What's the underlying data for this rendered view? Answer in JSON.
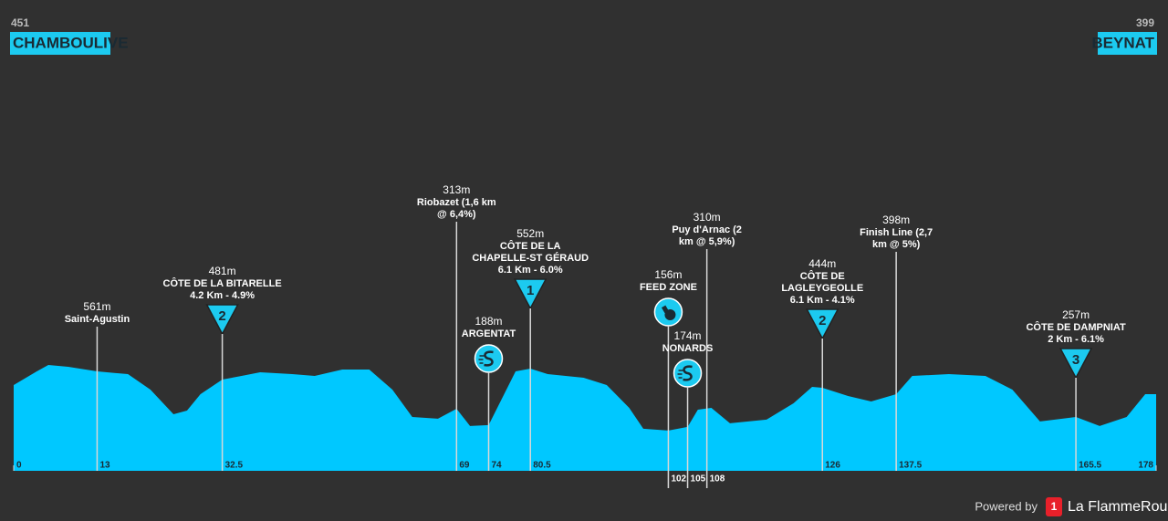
{
  "chart_data": {
    "type": "area",
    "start": {
      "number": "451",
      "name": "CHAMBOULIVE"
    },
    "finish": {
      "number": "399",
      "name": "BEYNAT"
    },
    "color": "#00c8ff",
    "xlim": [
      0,
      178
    ],
    "ylim": [
      -100,
      1000
    ],
    "profile": {
      "km": [
        0,
        3.6,
        5.4,
        8.5,
        13,
        17.8,
        21.3,
        24.9,
        27,
        29.1,
        32.5,
        35.5,
        38.4,
        43.4,
        46.9,
        51.2,
        55.4,
        59,
        62.1,
        66.1,
        69,
        71.1,
        74,
        78.2,
        80.5,
        83.2,
        88.8,
        92.4,
        95.9,
        98.1,
        102,
        105,
        106.6,
        108.7,
        111.6,
        117.3,
        121.5,
        124.4,
        126,
        130,
        133.6,
        137.5,
        140,
        145.7,
        151.4,
        155.6,
        159.9,
        165.5,
        169.2,
        173.4,
        176.3,
        178
      ],
      "elevation": [
        465,
        555,
        597,
        585,
        555,
        537,
        435,
        273,
        297,
        405,
        501,
        525,
        549,
        537,
        525,
        567,
        567,
        435,
        255,
        243,
        309,
        195,
        201,
        555,
        573,
        537,
        513,
        465,
        315,
        177,
        165,
        189,
        303,
        315,
        213,
        237,
        345,
        453,
        447,
        393,
        357,
        405,
        525,
        537,
        525,
        435,
        225,
        255,
        195,
        255,
        405,
        405
      ]
    },
    "xticks": [
      0,
      13,
      32.5,
      69,
      74,
      80.5,
      102,
      105,
      108,
      126,
      137.5,
      165.5,
      178
    ],
    "markers": [
      {
        "km": 13,
        "elevation": "561m",
        "lines": [
          "Saint-Agustin"
        ]
      },
      {
        "km": 32.5,
        "elevation": "481m",
        "lines": [
          "CÔTE DE LA BITARELLE",
          "4.2 Km - 4.9%"
        ],
        "category": "2"
      },
      {
        "km": 69,
        "elevation": "313m",
        "lines": [
          "Riobazet (1,6 km",
          "@ 6,4%)"
        ]
      },
      {
        "km": 74,
        "elevation": "188m",
        "lines": [
          "ARGENTAT"
        ],
        "icon": "sprint"
      },
      {
        "km": 80.5,
        "elevation": "552m",
        "lines": [
          "CÔTE DE LA",
          "CHAPELLE-ST GÉRAUD",
          "6.1 Km - 6.0%"
        ],
        "category": "1"
      },
      {
        "km": 102,
        "elevation": "156m",
        "lines": [
          "FEED ZONE"
        ],
        "icon": "feed"
      },
      {
        "km": 105,
        "elevation": "174m",
        "lines": [
          "NONARDS"
        ],
        "icon": "sprint"
      },
      {
        "km": 108,
        "elevation": "310m",
        "lines": [
          "Puy d'Arnac (2",
          "km @ 5,9%)"
        ]
      },
      {
        "km": 126,
        "elevation": "444m",
        "lines": [
          "CÔTE DE",
          "LAGLEYGEOLLE",
          "6.1 Km - 4.1%"
        ],
        "category": "2"
      },
      {
        "km": 137.5,
        "elevation": "398m",
        "lines": [
          "Finish Line (2,7",
          "km @ 5%)"
        ]
      },
      {
        "km": 165.5,
        "elevation": "257m",
        "lines": [
          "CÔTE DE DAMPNIAT",
          "2 Km - 6.1%"
        ],
        "category": "3"
      }
    ],
    "footer": {
      "powered": "Powered by",
      "logo": "1",
      "brand": "La FlammeRouge"
    }
  }
}
